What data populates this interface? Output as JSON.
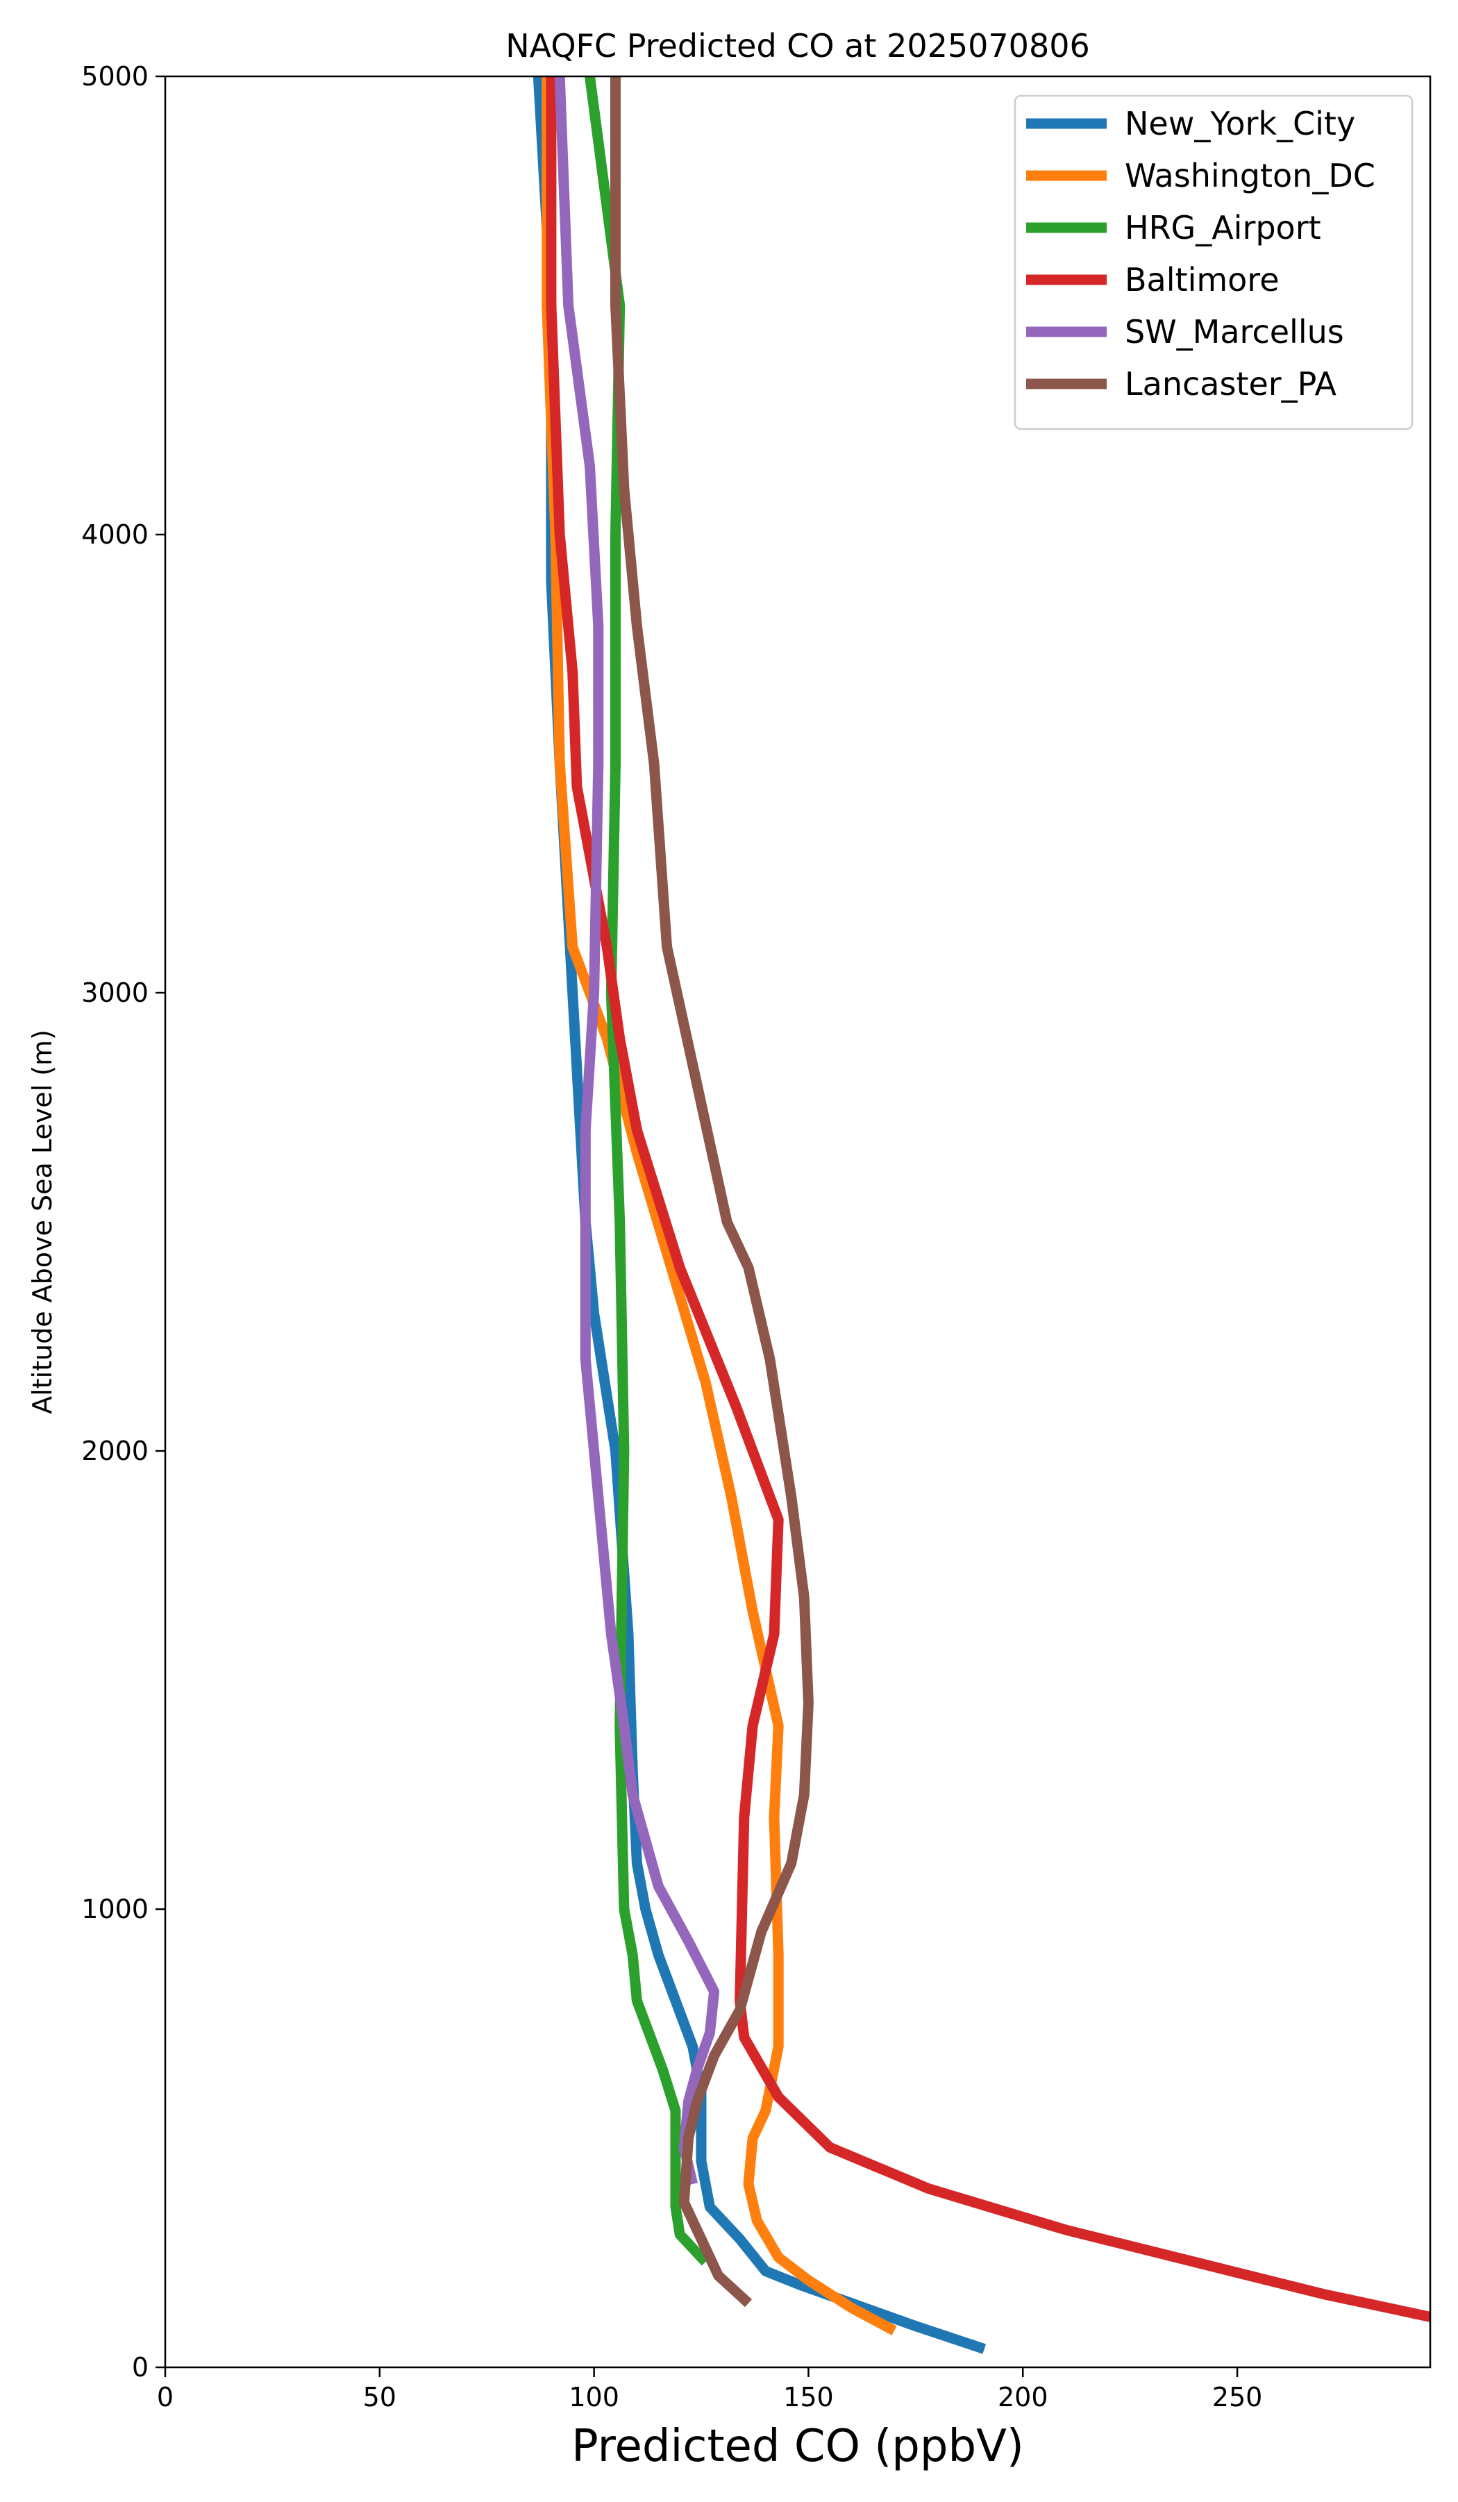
{
  "chart_data": {
    "type": "line",
    "title": "NAQFC Predicted CO at 2025070806",
    "xlabel": "Predicted CO (ppbV)",
    "ylabel": "Altitude Above Sea Level (m)",
    "xlim": [
      0,
      295
    ],
    "ylim": [
      0,
      5000
    ],
    "xticks": [
      0,
      50,
      100,
      150,
      200,
      250
    ],
    "yticks": [
      0,
      1000,
      2000,
      3000,
      4000,
      5000
    ],
    "grid": false,
    "legend_position": "top-right",
    "series": [
      {
        "name": "New_York_City",
        "color": "#1f77b4",
        "points": [
          [
            191,
            40
          ],
          [
            175,
            90
          ],
          [
            160,
            140
          ],
          [
            148,
            180
          ],
          [
            140,
            210
          ],
          [
            134,
            280
          ],
          [
            127,
            350
          ],
          [
            125,
            450
          ],
          [
            125,
            600
          ],
          [
            123,
            700
          ],
          [
            119,
            800
          ],
          [
            115,
            900
          ],
          [
            112,
            1000
          ],
          [
            110,
            1100
          ],
          [
            109,
            1300
          ],
          [
            108,
            1600
          ],
          [
            105,
            2000
          ],
          [
            100,
            2300
          ],
          [
            98,
            2500
          ],
          [
            95,
            3000
          ],
          [
            92,
            3500
          ],
          [
            90,
            3900
          ],
          [
            90,
            4500
          ],
          [
            87,
            5000
          ]
        ]
      },
      {
        "name": "Washington_DC",
        "color": "#ff7f0e",
        "points": [
          [
            170,
            80
          ],
          [
            160,
            130
          ],
          [
            150,
            190
          ],
          [
            143,
            240
          ],
          [
            138,
            320
          ],
          [
            136,
            400
          ],
          [
            137,
            500
          ],
          [
            140,
            560
          ],
          [
            143,
            700
          ],
          [
            143,
            900
          ],
          [
            142,
            1200
          ],
          [
            143,
            1400
          ],
          [
            137,
            1650
          ],
          [
            132,
            1900
          ],
          [
            126,
            2150
          ],
          [
            118,
            2400
          ],
          [
            110,
            2650
          ],
          [
            103,
            2900
          ],
          [
            95,
            3100
          ],
          [
            92,
            3500
          ],
          [
            91,
            4000
          ],
          [
            89,
            4500
          ],
          [
            89,
            5000
          ]
        ]
      },
      {
        "name": "HRG_Airport",
        "color": "#2ca02c",
        "points": [
          [
            126,
            230
          ],
          [
            120,
            290
          ],
          [
            119,
            350
          ],
          [
            119,
            560
          ],
          [
            116,
            650
          ],
          [
            110,
            800
          ],
          [
            109,
            900
          ],
          [
            107,
            1000
          ],
          [
            106,
            1400
          ],
          [
            107,
            2000
          ],
          [
            106,
            2500
          ],
          [
            104,
            3000
          ],
          [
            105,
            3500
          ],
          [
            105,
            4000
          ],
          [
            106,
            4500
          ],
          [
            99,
            5000
          ]
        ]
      },
      {
        "name": "Baltimore",
        "color": "#d62728",
        "points": [
          [
            295,
            110
          ],
          [
            270,
            160
          ],
          [
            240,
            230
          ],
          [
            210,
            300
          ],
          [
            178,
            390
          ],
          [
            155,
            480
          ],
          [
            143,
            590
          ],
          [
            135,
            720
          ],
          [
            134,
            800
          ],
          [
            135,
            1200
          ],
          [
            137,
            1400
          ],
          [
            142,
            1600
          ],
          [
            143,
            1850
          ],
          [
            133,
            2100
          ],
          [
            120,
            2400
          ],
          [
            110,
            2700
          ],
          [
            106,
            2900
          ],
          [
            103,
            3100
          ],
          [
            96,
            3450
          ],
          [
            95,
            3700
          ],
          [
            92,
            4000
          ],
          [
            90,
            4500
          ],
          [
            90,
            5000
          ]
        ]
      },
      {
        "name": "SW_Marcellus",
        "color": "#9467bd",
        "points": [
          [
            123,
            400
          ],
          [
            121,
            480
          ],
          [
            122,
            580
          ],
          [
            124,
            650
          ],
          [
            127,
            730
          ],
          [
            128,
            820
          ],
          [
            122,
            930
          ],
          [
            115,
            1050
          ],
          [
            109,
            1250
          ],
          [
            107,
            1400
          ],
          [
            104,
            1600
          ],
          [
            101,
            1900
          ],
          [
            98,
            2200
          ],
          [
            98,
            2700
          ],
          [
            100,
            3000
          ],
          [
            101,
            3500
          ],
          [
            101,
            3800
          ],
          [
            99,
            4150
          ],
          [
            94,
            4500
          ],
          [
            92,
            5000
          ]
        ]
      },
      {
        "name": "Lancaster_PA",
        "color": "#8c564b",
        "points": [
          [
            136,
            140
          ],
          [
            129,
            200
          ],
          [
            126,
            260
          ],
          [
            121,
            360
          ],
          [
            122,
            500
          ],
          [
            124,
            580
          ],
          [
            128,
            680
          ],
          [
            134,
            780
          ],
          [
            139,
            950
          ],
          [
            146,
            1100
          ],
          [
            149,
            1250
          ],
          [
            150,
            1450
          ],
          [
            149,
            1680
          ],
          [
            146,
            1900
          ],
          [
            141,
            2200
          ],
          [
            136,
            2400
          ],
          [
            131,
            2500
          ],
          [
            124,
            2800
          ],
          [
            117,
            3100
          ],
          [
            114,
            3500
          ],
          [
            110,
            3800
          ],
          [
            107,
            4100
          ],
          [
            105,
            4500
          ],
          [
            105,
            5000
          ]
        ]
      }
    ]
  }
}
